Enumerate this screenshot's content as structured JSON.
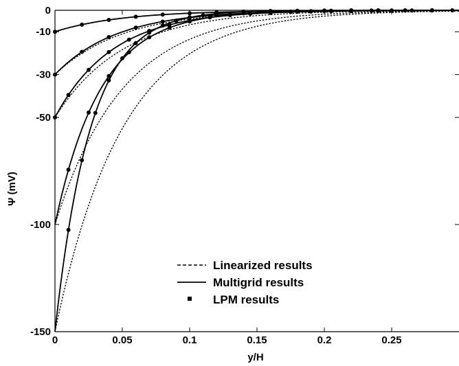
{
  "chart_data": {
    "type": "line",
    "title": "",
    "xlabel": "y/H",
    "ylabel": "Ψ  (mV)",
    "xlim": [
      0,
      0.3
    ],
    "ylim": [
      -150,
      0
    ],
    "x_ticks": [
      0,
      0.05,
      0.1,
      0.15,
      0.2,
      0.25
    ],
    "x_tick_labels": [
      "0",
      "0.05",
      "0.1",
      "0.15",
      "0.2",
      "0.25"
    ],
    "y_ticks": [
      0,
      -10,
      -30,
      -50,
      -100,
      -150
    ],
    "y_tick_labels": [
      "0",
      "-10",
      "-30",
      "-50",
      "-100",
      "-150"
    ],
    "grid": false,
    "legend_position": "bottom-center",
    "legend": [
      {
        "label": "Linearized results",
        "style": "dashed"
      },
      {
        "label": "Multigrid results",
        "style": "solid"
      },
      {
        "label": "LPM results",
        "style": "marker"
      }
    ],
    "curves": [
      {
        "psi0": -10,
        "kappa": 20.0,
        "kappa_linear": 20.0
      },
      {
        "psi0": -30,
        "kappa": 21.8,
        "kappa_linear": 20.0
      },
      {
        "psi0": -50,
        "kappa": 23.5,
        "kappa_linear": 20.0
      },
      {
        "psi0": -100,
        "kappa": 29.5,
        "kappa_linear": 20.0
      },
      {
        "psi0": -150,
        "kappa": 38.0,
        "kappa_linear": 20.0
      }
    ],
    "lpm_points": [
      {
        "psi0": -10,
        "x": [
          0,
          0.02,
          0.04,
          0.06,
          0.08,
          0.1,
          0.12,
          0.14,
          0.16,
          0.18,
          0.2,
          0.22,
          0.24,
          0.26,
          0.28
        ],
        "y": [
          -10,
          -6.7,
          -4.5,
          -3.0,
          -2.0,
          -1.4,
          -0.9,
          -0.6,
          -0.4,
          -0.3,
          -0.2,
          -0.1,
          -0.1,
          -0.1,
          0
        ]
      },
      {
        "psi0": -30,
        "x": [
          0,
          0.02,
          0.04,
          0.06,
          0.08,
          0.1,
          0.12,
          0.14,
          0.16,
          0.18,
          0.2,
          0.22,
          0.24,
          0.26,
          0.28
        ],
        "y": [
          -30,
          -19.4,
          -12.5,
          -8.1,
          -5.3,
          -3.4,
          -2.2,
          -1.4,
          -0.9,
          -0.6,
          -0.4,
          -0.3,
          -0.2,
          -0.1,
          -0.1
        ]
      },
      {
        "psi0": -50,
        "x": [
          0,
          0.01,
          0.025,
          0.04,
          0.055,
          0.07,
          0.085,
          0.1,
          0.115,
          0.13,
          0.145,
          0.16,
          0.175,
          0.19,
          0.205,
          0.22,
          0.235,
          0.25,
          0.265,
          0.28
        ],
        "y": [
          -50,
          -39.5,
          -27.8,
          -19.5,
          -13.7,
          -9.6,
          -6.8,
          -4.8,
          -3.3,
          -2.3,
          -1.6,
          -1.2,
          -0.8,
          -0.6,
          -0.4,
          -0.3,
          -0.2,
          -0.1,
          -0.1,
          -0.1
        ]
      },
      {
        "psi0": -100,
        "x": [
          0.01,
          0.025,
          0.04,
          0.055,
          0.07,
          0.085,
          0.1,
          0.115,
          0.13,
          0.145,
          0.16,
          0.175,
          0.19,
          0.205,
          0.22,
          0.235,
          0.25,
          0.265,
          0.28,
          0.295
        ],
        "y": [
          -74.4,
          -47.7,
          -30.7,
          -19.6,
          -12.6,
          -8.1,
          -5.2,
          -3.3,
          -2.1,
          -1.4,
          -0.9,
          -0.6,
          -0.4,
          -0.2,
          -0.2,
          -0.1,
          -0.1,
          -0.1,
          0,
          0
        ]
      },
      {
        "psi0": -150,
        "x": [
          0.01,
          0.02,
          0.03,
          0.04,
          0.05,
          0.06,
          0.07,
          0.08,
          0.09,
          0.1,
          0.11,
          0.12,
          0.14,
          0.16,
          0.18,
          0.2,
          0.22,
          0.24,
          0.26,
          0.28
        ],
        "y": [
          -102.5,
          -70.0,
          -47.9,
          -32.7,
          -22.4,
          -15.3,
          -10.4,
          -7.1,
          -4.9,
          -3.3,
          -2.3,
          -1.6,
          -0.7,
          -0.3,
          -0.2,
          -0.1,
          0,
          0,
          0,
          0
        ]
      }
    ]
  }
}
